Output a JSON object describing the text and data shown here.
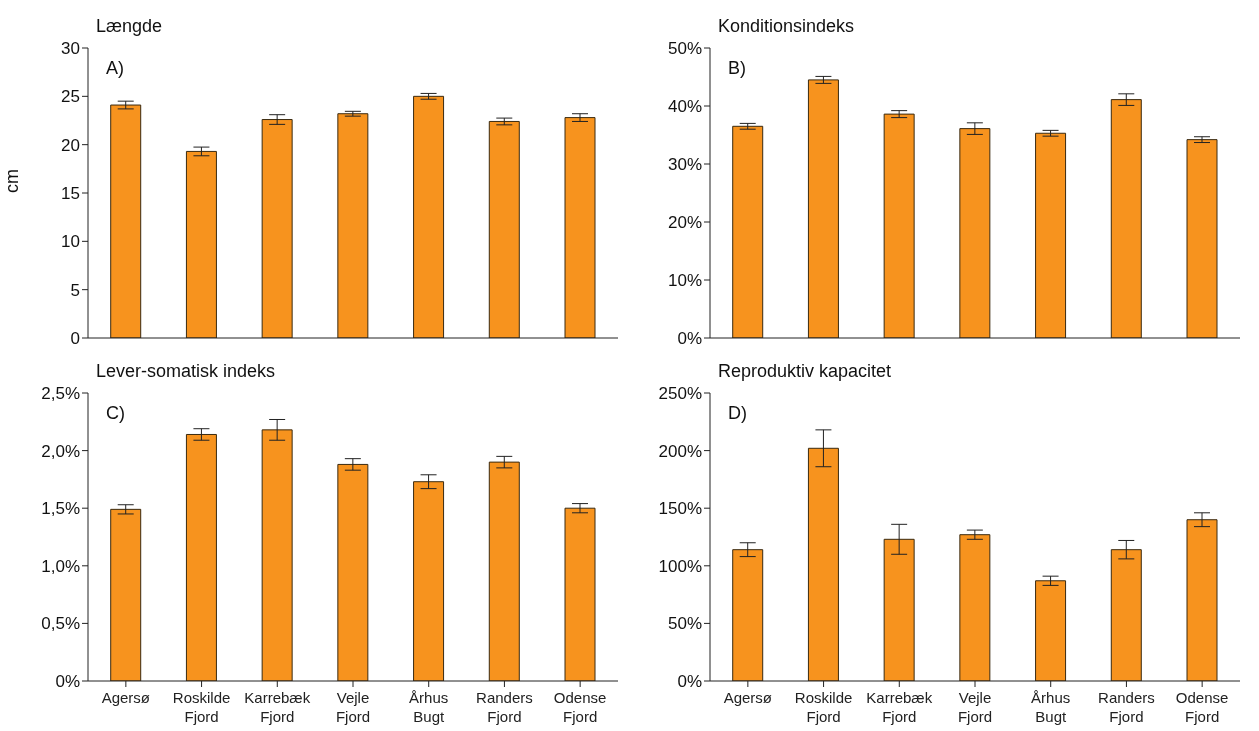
{
  "chart_data": [
    {
      "type": "bar",
      "title": "Længde",
      "ylabel": "cm",
      "annotations": [
        "A)"
      ],
      "categories": [
        null,
        null,
        null,
        null,
        null,
        null,
        null
      ],
      "color": "#f7931e",
      "values": [
        24.1,
        19.3,
        22.6,
        23.2,
        25.0,
        22.4,
        22.8
      ],
      "errors": [
        0.4,
        0.45,
        0.5,
        0.25,
        0.3,
        0.35,
        0.4
      ],
      "ylim": [
        0,
        30
      ],
      "yticks": [
        0,
        5,
        10,
        15,
        20,
        25,
        30
      ],
      "tick_labels": "y"
    },
    {
      "type": "bar",
      "title": "Konditionsindeks",
      "annotations": [
        "B)"
      ],
      "categories": [
        null,
        null,
        null,
        null,
        null,
        null,
        null
      ],
      "color": "#f7931e",
      "values": [
        36.5,
        44.5,
        38.6,
        36.1,
        35.3,
        41.1,
        34.2
      ],
      "errors": [
        0.5,
        0.6,
        0.6,
        1.0,
        0.5,
        1.0,
        0.5
      ],
      "ylim": [
        0,
        50
      ],
      "yticks": [
        {
          "value": 0,
          "label": "0%"
        },
        {
          "value": 10,
          "label": "10%"
        },
        {
          "value": 20,
          "label": "20%"
        },
        {
          "value": 30,
          "label": "30%"
        },
        {
          "value": 40,
          "label": "40%"
        },
        {
          "value": 50,
          "label": "50%"
        }
      ],
      "tick_labels": "y"
    },
    {
      "type": "bar",
      "title": "Lever-somatisk indeks",
      "annotations": [
        "C)"
      ],
      "categories": [
        "Agersø",
        "Roskilde Fjord",
        "Karrebæk Fjord",
        "Vejle Fjord",
        "Århus Bugt",
        "Randers Fjord",
        "Odense Fjord"
      ],
      "color": "#f7931e",
      "values": [
        1.49,
        2.14,
        2.18,
        1.88,
        1.73,
        1.9,
        1.5
      ],
      "errors": [
        0.04,
        0.05,
        0.09,
        0.05,
        0.06,
        0.05,
        0.04
      ],
      "ylim": [
        0,
        2.5
      ],
      "yticks": [
        {
          "value": 0,
          "label": "0%"
        },
        {
          "value": 0.5,
          "label": "0,5%"
        },
        {
          "value": 1,
          "label": "1,0%"
        },
        {
          "value": 1.5,
          "label": "1,5%"
        },
        {
          "value": 2,
          "label": "2,0%"
        },
        {
          "value": 2.5,
          "label": "2,5%"
        }
      ]
    },
    {
      "type": "bar",
      "title": "Reproduktiv kapacitet",
      "annotations": [
        "D)"
      ],
      "categories": [
        "Agersø",
        "Roskilde Fjord",
        "Karrebæk Fjord",
        "Vejle Fjord",
        "Århus Bugt",
        "Randers Fjord",
        "Odense Fjord"
      ],
      "color": "#f7931e",
      "values": [
        114,
        202,
        123,
        127,
        87,
        114,
        140
      ],
      "errors": [
        6,
        16,
        13,
        4,
        4,
        8,
        6
      ],
      "ylim": [
        0,
        250
      ],
      "yticks": [
        {
          "value": 0,
          "label": "0%"
        },
        {
          "value": 50,
          "label": "50%"
        },
        {
          "value": 100,
          "label": "100%"
        },
        {
          "value": 150,
          "label": "150%"
        },
        {
          "value": 200,
          "label": "200%"
        },
        {
          "value": 250,
          "label": "250%"
        }
      ]
    }
  ]
}
